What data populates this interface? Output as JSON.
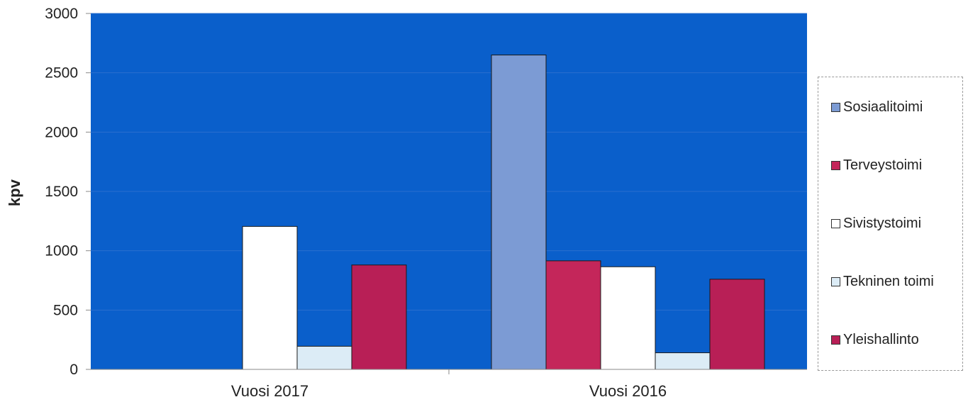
{
  "chart_data": {
    "type": "bar",
    "title": "",
    "xlabel": "",
    "ylabel": "kpv",
    "ylim": [
      0,
      3000
    ],
    "yticks": [
      0,
      500,
      1000,
      1500,
      2000,
      2500,
      3000
    ],
    "grid": true,
    "legend_position": "right",
    "plot_background": "#0a5fcb",
    "categories": [
      "Vuosi 2017",
      "Vuosi 2016"
    ],
    "series": [
      {
        "name": "Sosiaalitoimi",
        "color": "#7c9bd4",
        "values": [
          0,
          2650
        ]
      },
      {
        "name": "Terveystoimi",
        "color": "#c4265a",
        "values": [
          0,
          915
        ]
      },
      {
        "name": "Sivistystoimi",
        "color": "#ffffff",
        "values": [
          1205,
          865
        ]
      },
      {
        "name": "Tekninen toimi",
        "color": "#dcecf6",
        "values": [
          195,
          140
        ]
      },
      {
        "name": "Yleishallinto",
        "color": "#b81f56",
        "values": [
          880,
          760
        ]
      }
    ]
  }
}
